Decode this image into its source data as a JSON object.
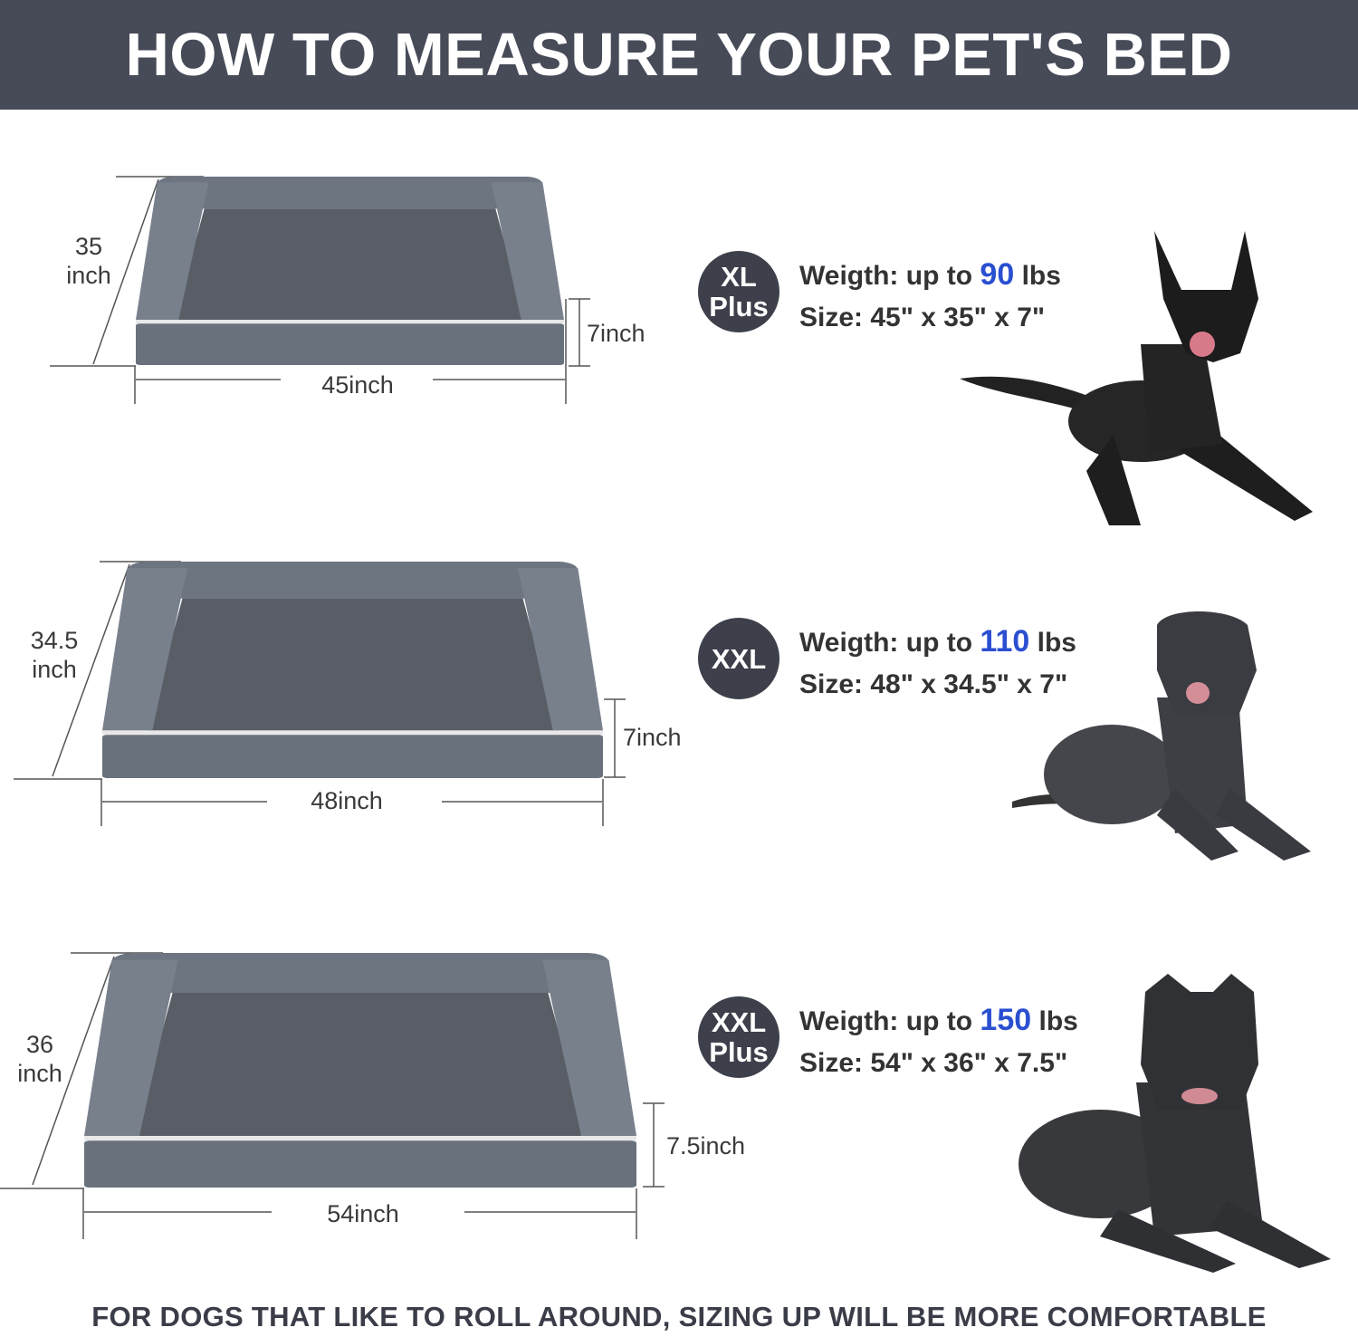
{
  "header": {
    "title": "HOW TO MEASURE YOUR PET'S BED"
  },
  "colors": {
    "header_bg": "#474a57",
    "badge_bg": "#3d404b",
    "accent_number": "#2a4fd1",
    "bed": "#69717d"
  },
  "sizes": [
    {
      "badge_line1": "XL",
      "badge_line2": "Plus",
      "weight_prefix": "Weigth: up to",
      "weight_value": "90",
      "weight_unit": "lbs",
      "size_text": "Size: 45\" x 35\" x 7\"",
      "depth_num": "35",
      "depth_unit": "inch",
      "height_label": "7inch",
      "width_label": "45inch"
    },
    {
      "badge_line1": "XXL",
      "badge_line2": "",
      "weight_prefix": "Weigth: up to",
      "weight_value": "110",
      "weight_unit": "lbs",
      "size_text": "Size: 48\" x 34.5\" x 7\"",
      "depth_num": "34.5",
      "depth_unit": "inch",
      "height_label": "7inch",
      "width_label": "48inch"
    },
    {
      "badge_line1": "XXL",
      "badge_line2": "Plus",
      "weight_prefix": "Weigth: up to",
      "weight_value": "150",
      "weight_unit": "lbs",
      "size_text": "Size: 54\" x 36\" x 7.5\"",
      "depth_num": "36",
      "depth_unit": "inch",
      "height_label": "7.5inch",
      "width_label": "54inch"
    }
  ],
  "footer": {
    "text": "FOR DOGS THAT LIKE TO ROLL AROUND, SIZING UP WILL BE MORE COMFORTABLE"
  }
}
